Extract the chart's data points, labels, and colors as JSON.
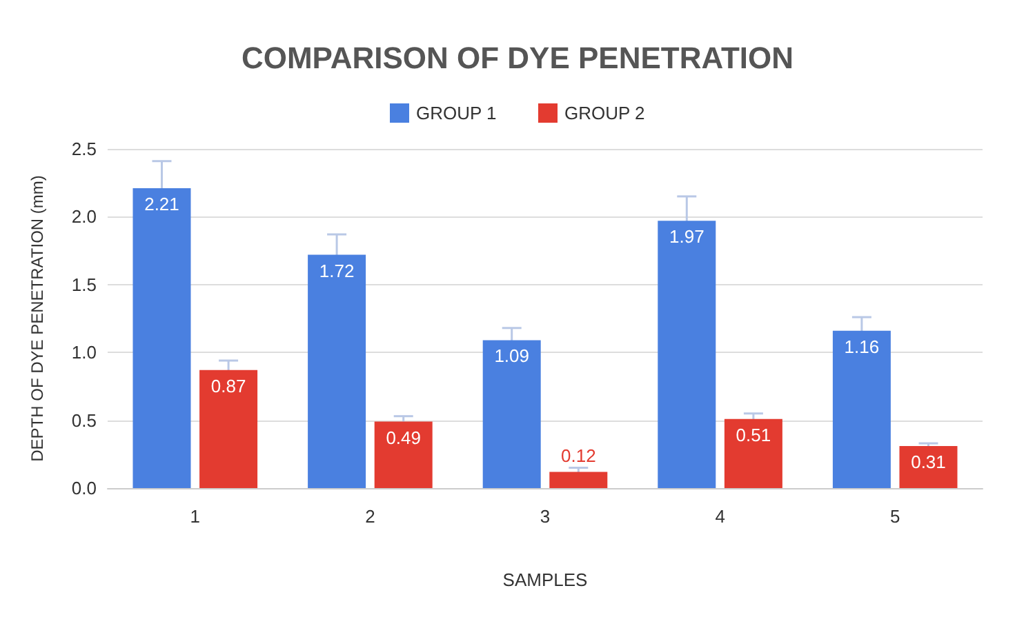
{
  "chart_data": {
    "type": "bar",
    "title": "COMPARISON OF DYE PENETRATION",
    "xlabel": "SAMPLES",
    "ylabel": "DEPTH OF DYE PENETRATION (mm)",
    "categories": [
      "1",
      "2",
      "3",
      "4",
      "5"
    ],
    "series": [
      {
        "name": "GROUP 1",
        "color": "#4a80e0",
        "values": [
          2.21,
          1.72,
          1.09,
          1.97,
          1.16
        ],
        "errors": [
          0.2,
          0.15,
          0.09,
          0.18,
          0.1
        ]
      },
      {
        "name": "GROUP 2",
        "color": "#e33b30",
        "values": [
          0.87,
          0.49,
          0.12,
          0.51,
          0.31
        ],
        "errors": [
          0.07,
          0.04,
          0.03,
          0.04,
          0.02
        ]
      }
    ],
    "ylim": [
      0,
      2.5
    ],
    "yticks": [
      {
        "value": 0,
        "label": "0.0"
      },
      0.5,
      {
        "value": 1,
        "label": "1.0"
      },
      1.5,
      {
        "value": 2,
        "label": "2.0"
      },
      2.5
    ],
    "grid": "y",
    "legend": "top",
    "data_labels": true
  }
}
